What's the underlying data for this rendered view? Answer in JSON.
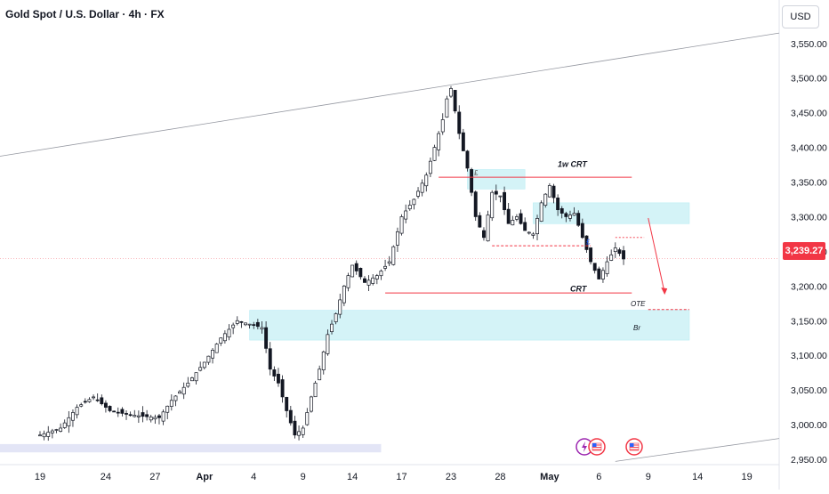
{
  "header": {
    "title": "Gold Spot / U.S. Dollar · 4h · FX",
    "currency": "USD"
  },
  "price_axis": {
    "current_price": "3,239.27"
  },
  "annotations": {
    "weekly_crt": "1w CRT",
    "crt": "CRT",
    "ote": "OTE",
    "br": "Br",
    "flag_upper": "£",
    "flag_lower": "£"
  },
  "events": [
    {
      "type": "lightning",
      "icon": "lightning-icon",
      "color": "#9c27b0"
    },
    {
      "type": "us-flag",
      "icon": "us-flag-icon",
      "color": "#f23645"
    },
    {
      "type": "us-flag",
      "icon": "us-flag-icon",
      "color": "#f23645"
    }
  ],
  "colors": {
    "up": "#131722",
    "down": "#131722",
    "zone": "#b2ebf2",
    "level": "#f23645",
    "current": "#f23645"
  },
  "chart_data": {
    "type": "candlestick",
    "title": "Gold Spot / U.S. Dollar · 4h · FX",
    "ylim": [
      2925,
      3580
    ],
    "yticks": [
      2950,
      3000,
      3050,
      3100,
      3150,
      3200,
      3250,
      3300,
      3350,
      3400,
      3450,
      3500,
      3550
    ],
    "ytick_labels": [
      "2,950.00",
      "3,000.00",
      "3,050.00",
      "3,100.00",
      "3,150.00",
      "3,200.00",
      "3,250.00",
      "3,300.00",
      "3,350.00",
      "3,400.00",
      "3,450.00",
      "3,500.00",
      "3,550.00"
    ],
    "xtick_labels": [
      "19",
      "24",
      "27",
      "Apr",
      "4",
      "9",
      "14",
      "17",
      "23",
      "28",
      "May",
      "6",
      "9",
      "14",
      "19"
    ],
    "xtick_index": [
      0,
      16,
      28,
      40,
      52,
      64,
      76,
      88,
      100,
      112,
      124,
      136,
      148,
      160,
      172
    ],
    "series_path": [
      [
        0,
        2985
      ],
      [
        5,
        2995
      ],
      [
        9,
        3025
      ],
      [
        13,
        3040
      ],
      [
        17,
        3020
      ],
      [
        21,
        3015
      ],
      [
        25,
        3012
      ],
      [
        29,
        3010
      ],
      [
        32,
        3035
      ],
      [
        36,
        3060
      ],
      [
        40,
        3090
      ],
      [
        44,
        3125
      ],
      [
        48,
        3150
      ],
      [
        51,
        3145
      ],
      [
        54,
        3140
      ],
      [
        56,
        3080
      ],
      [
        58,
        3060
      ],
      [
        60,
        3020
      ],
      [
        62,
        2985
      ],
      [
        64,
        2995
      ],
      [
        66,
        3040
      ],
      [
        68,
        3080
      ],
      [
        70,
        3130
      ],
      [
        72,
        3160
      ],
      [
        74,
        3200
      ],
      [
        76,
        3230
      ],
      [
        79,
        3205
      ],
      [
        82,
        3215
      ],
      [
        85,
        3235
      ],
      [
        88,
        3300
      ],
      [
        91,
        3325
      ],
      [
        94,
        3360
      ],
      [
        96,
        3400
      ],
      [
        98,
        3440
      ],
      [
        99,
        3470
      ],
      [
        100,
        3485
      ],
      [
        102,
        3420
      ],
      [
        104,
        3370
      ],
      [
        106,
        3300
      ],
      [
        108,
        3270
      ],
      [
        110,
        3335
      ],
      [
        112,
        3330
      ],
      [
        114,
        3290
      ],
      [
        116,
        3300
      ],
      [
        118,
        3280
      ],
      [
        120,
        3275
      ],
      [
        122,
        3320
      ],
      [
        124,
        3345
      ],
      [
        126,
        3310
      ],
      [
        128,
        3300
      ],
      [
        130,
        3305
      ],
      [
        132,
        3270
      ],
      [
        134,
        3235
      ],
      [
        136,
        3210
      ],
      [
        138,
        3235
      ],
      [
        140,
        3255
      ],
      [
        142,
        3239
      ]
    ],
    "zones": [
      {
        "from": 104,
        "to": 118,
        "low": 3340,
        "high": 3368
      },
      {
        "from": 120,
        "to": 158,
        "low": 3290,
        "high": 3320
      },
      {
        "from": 51,
        "to": 158,
        "low": 3122,
        "high": 3165
      },
      {
        "from": -10,
        "to": 83,
        "low": 2960,
        "high": 2972
      }
    ],
    "levels": [
      {
        "label": "1w CRT",
        "from": 97,
        "to": 144,
        "value": 3357,
        "style": "solid"
      },
      {
        "label": "CRT",
        "from": 84,
        "to": 144,
        "value": 3190,
        "style": "solid"
      },
      {
        "label": "",
        "from": 110,
        "to": 134,
        "value": 3258,
        "style": "dashed"
      },
      {
        "label": "OTE",
        "from": 148,
        "to": 158,
        "value": 3166,
        "style": "dashed"
      }
    ],
    "trendlines": [
      {
        "from": [
          -10,
          3387
        ],
        "to": [
          192,
          3565
        ]
      },
      {
        "from": [
          140,
          2947
        ],
        "to": [
          192,
          2980
        ]
      }
    ],
    "projection": [
      [
        148,
        3298
      ],
      [
        152,
        3190
      ]
    ],
    "current_price": 3239.27
  }
}
